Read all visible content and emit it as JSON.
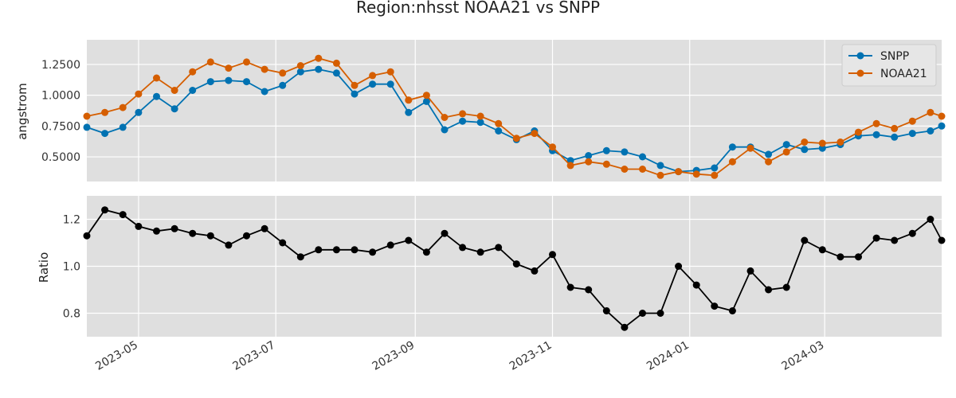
{
  "chart_data": [
    {
      "type": "line",
      "title": "Region:nhsst NOAA21 vs SNPP",
      "ylabel": "angstrom",
      "ylim": [
        0.3,
        1.45
      ],
      "yticks": [
        "0.5000",
        "0.7500",
        "1.0000",
        "1.2500"
      ],
      "ytick_values": [
        0.5,
        0.75,
        1.0,
        1.25
      ],
      "xlim": [
        "2023-04-08",
        "2024-04-22"
      ],
      "grid": true,
      "legend": "top-right",
      "x": [
        "2023-04-08",
        "2023-04-16",
        "2023-04-24",
        "2023-05-01",
        "2023-05-09",
        "2023-05-17",
        "2023-05-25",
        "2023-06-02",
        "2023-06-10",
        "2023-06-18",
        "2023-06-26",
        "2023-07-04",
        "2023-07-12",
        "2023-07-20",
        "2023-07-28",
        "2023-08-05",
        "2023-08-13",
        "2023-08-21",
        "2023-08-29",
        "2023-09-06",
        "2023-09-14",
        "2023-09-22",
        "2023-09-30",
        "2023-10-08",
        "2023-10-16",
        "2023-10-24",
        "2023-11-01",
        "2023-11-09",
        "2023-11-17",
        "2023-11-25",
        "2023-12-03",
        "2023-12-11",
        "2023-12-19",
        "2023-12-27",
        "2024-01-04",
        "2024-01-12",
        "2024-01-20",
        "2024-01-28",
        "2024-02-05",
        "2024-02-13",
        "2024-02-21",
        "2024-02-29",
        "2024-03-08",
        "2024-03-16",
        "2024-03-24",
        "2024-04-01",
        "2024-04-09",
        "2024-04-17",
        "2024-04-22"
      ],
      "series": [
        {
          "name": "SNPP",
          "color": "#0072b2",
          "values": [
            0.74,
            0.69,
            0.74,
            0.86,
            0.99,
            0.89,
            1.04,
            1.11,
            1.12,
            1.11,
            1.03,
            1.08,
            1.19,
            1.21,
            1.18,
            1.01,
            1.09,
            1.09,
            0.86,
            0.95,
            0.72,
            0.79,
            0.78,
            0.71,
            0.64,
            0.71,
            0.55,
            0.47,
            0.51,
            0.55,
            0.54,
            0.5,
            0.43,
            0.38,
            0.39,
            0.41,
            0.58,
            0.58,
            0.52,
            0.6,
            0.56,
            0.57,
            0.6,
            0.67,
            0.68,
            0.66,
            0.69,
            0.71,
            0.75
          ]
        },
        {
          "name": "NOAA21",
          "color": "#d55e00",
          "values": [
            0.83,
            0.86,
            0.9,
            1.01,
            1.14,
            1.04,
            1.19,
            1.27,
            1.22,
            1.27,
            1.21,
            1.18,
            1.24,
            1.3,
            1.26,
            1.08,
            1.16,
            1.19,
            0.96,
            1.0,
            0.82,
            0.85,
            0.83,
            0.77,
            0.65,
            0.69,
            0.58,
            0.43,
            0.46,
            0.44,
            0.4,
            0.4,
            0.35,
            0.38,
            0.36,
            0.35,
            0.46,
            0.57,
            0.46,
            0.54,
            0.62,
            0.61,
            0.62,
            0.7,
            0.77,
            0.73,
            0.79,
            0.86,
            0.83
          ]
        }
      ]
    },
    {
      "type": "line",
      "ylabel": "Ratio",
      "ylim": [
        0.7,
        1.3
      ],
      "yticks": [
        "0.8",
        "1.0",
        "1.2"
      ],
      "ytick_values": [
        0.8,
        1.0,
        1.2
      ],
      "xticks": [
        "2023-05",
        "2023-07",
        "2023-09",
        "2023-11",
        "2024-01",
        "2024-03"
      ],
      "xtick_dates": [
        "2023-05-01",
        "2023-07-01",
        "2023-09-01",
        "2023-11-01",
        "2024-01-01",
        "2024-03-01"
      ],
      "grid": true,
      "series": [
        {
          "color": "#000000",
          "values": [
            1.13,
            1.24,
            1.22,
            1.17,
            1.15,
            1.16,
            1.14,
            1.13,
            1.09,
            1.13,
            1.16,
            1.1,
            1.04,
            1.07,
            1.07,
            1.07,
            1.06,
            1.09,
            1.11,
            1.06,
            1.14,
            1.08,
            1.06,
            1.08,
            1.01,
            0.98,
            1.05,
            0.91,
            0.9,
            0.81,
            0.74,
            0.8,
            0.8,
            1.0,
            0.92,
            0.83,
            0.81,
            0.98,
            0.9,
            0.91,
            1.11,
            1.07,
            1.04,
            1.04,
            1.12,
            1.11,
            1.14,
            1.2,
            1.11
          ]
        }
      ]
    }
  ]
}
